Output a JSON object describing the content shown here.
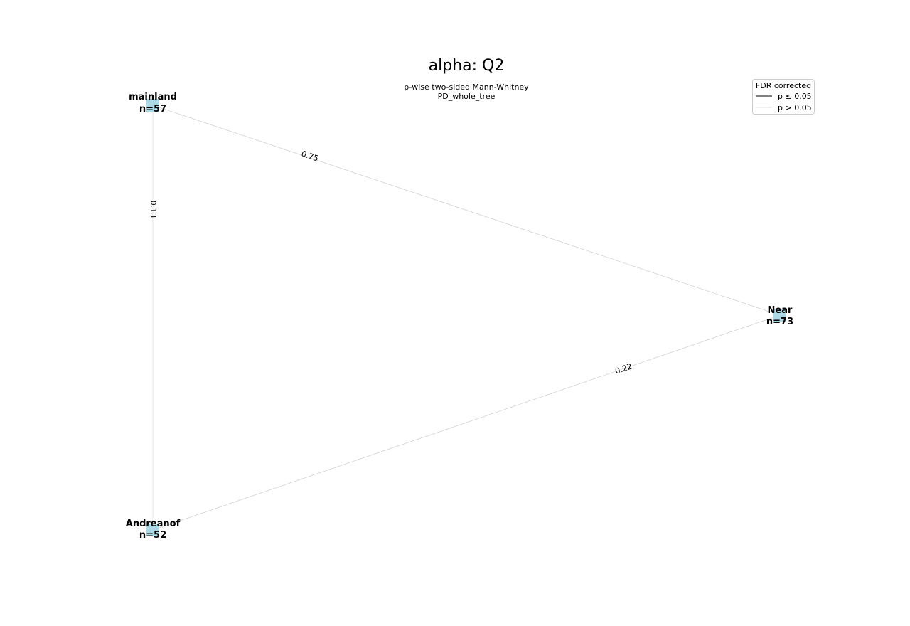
{
  "title": "alpha: Q2",
  "subtitle": {
    "line1": "p-wise two-sided Mann-Whitney",
    "line2": "PD_whole_tree"
  },
  "legend": {
    "title": "FDR corrected",
    "items": [
      {
        "label": "p ≤ 0.05",
        "color": "#808080"
      },
      {
        "label": "p > 0.05",
        "color": "#e0e0e0"
      }
    ]
  },
  "nodes": [
    {
      "id": "mainland",
      "name": "mainland",
      "count": "n=57"
    },
    {
      "id": "near",
      "name": "Near",
      "count": "n=73"
    },
    {
      "id": "andreanof",
      "name": "Andreanof",
      "count": "n=52"
    }
  ],
  "edges": [
    {
      "from": "mainland",
      "to": "near",
      "p": "0.75"
    },
    {
      "from": "mainland",
      "to": "andreanof",
      "p": "0.13"
    },
    {
      "from": "andreanof",
      "to": "near",
      "p": "0.22"
    }
  ],
  "colors": {
    "node": "#add8e6",
    "edge_nonsignificant": "#d3d3d3",
    "edge_vertical": "#e6e6e6"
  }
}
